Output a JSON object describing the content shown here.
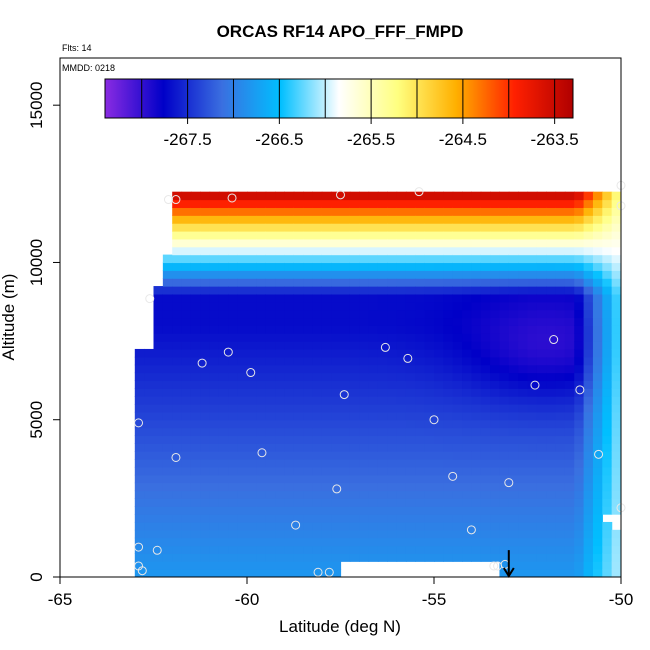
{
  "chart_data": {
    "type": "heatmap",
    "title": "ORCAS RF14 APO_FFF_FMPD",
    "annotations": [
      "Flts: 14",
      "MMDD: 0218"
    ],
    "xlabel": "Latitude (deg N)",
    "ylabel": "Altitude (m)",
    "xlim": [
      -65,
      -50
    ],
    "ylim": [
      0,
      16500
    ],
    "x_ticks": [
      -65,
      -60,
      -55,
      -50
    ],
    "y_ticks": [
      0,
      5000,
      10000,
      15000
    ],
    "colorbar": {
      "range": [
        -268.4,
        -263.3
      ],
      "ticks": [
        -267.5,
        -266.5,
        -265.5,
        -264.5,
        -263.5
      ],
      "colors": [
        "#8a2be2",
        "#0000c8",
        "#3a6fe0",
        "#00bfff",
        "#ffffff",
        "#ffff80",
        "#ffb000",
        "#ff2000",
        "#b00000"
      ]
    },
    "field_summary": {
      "top_layer_altitude_range": [
        10500,
        12300
      ],
      "top_layer_value_range": [
        -264.8,
        -263.3
      ],
      "core_minimum_value": -268.0,
      "core_minimum_location": {
        "lat": -52.0,
        "alt": 7500
      },
      "lower_layer_value": -266.8,
      "data_lat_range": [
        -63.0,
        -50.0
      ]
    },
    "flight_points": [
      {
        "lat": -62.1,
        "alt": 12000
      },
      {
        "lat": -61.9,
        "alt": 12000
      },
      {
        "lat": -60.4,
        "alt": 12050
      },
      {
        "lat": -57.5,
        "alt": 12150
      },
      {
        "lat": -55.4,
        "alt": 12250
      },
      {
        "lat": -50.0,
        "alt": 12450
      },
      {
        "lat": -50.0,
        "alt": 11800
      },
      {
        "lat": -62.6,
        "alt": 8850
      },
      {
        "lat": -60.5,
        "alt": 7150
      },
      {
        "lat": -61.2,
        "alt": 6800
      },
      {
        "lat": -59.9,
        "alt": 6500
      },
      {
        "lat": -56.3,
        "alt": 7300
      },
      {
        "lat": -55.7,
        "alt": 6950
      },
      {
        "lat": -51.8,
        "alt": 7550
      },
      {
        "lat": -52.3,
        "alt": 6100
      },
      {
        "lat": -51.1,
        "alt": 5950
      },
      {
        "lat": -57.4,
        "alt": 5800
      },
      {
        "lat": -55.0,
        "alt": 5000
      },
      {
        "lat": -62.9,
        "alt": 4900
      },
      {
        "lat": -61.9,
        "alt": 3800
      },
      {
        "lat": -59.6,
        "alt": 3950
      },
      {
        "lat": -54.5,
        "alt": 3200
      },
      {
        "lat": -53.0,
        "alt": 3000
      },
      {
        "lat": -50.6,
        "alt": 3900
      },
      {
        "lat": -57.6,
        "alt": 2800
      },
      {
        "lat": -58.7,
        "alt": 1650
      },
      {
        "lat": -54.0,
        "alt": 1500
      },
      {
        "lat": -50.0,
        "alt": 2200
      },
      {
        "lat": -62.9,
        "alt": 950
      },
      {
        "lat": -62.4,
        "alt": 850
      },
      {
        "lat": -62.9,
        "alt": 350
      },
      {
        "lat": -62.8,
        "alt": 200
      },
      {
        "lat": -58.1,
        "alt": 150
      },
      {
        "lat": -57.8,
        "alt": 150
      },
      {
        "lat": -53.4,
        "alt": 350
      },
      {
        "lat": -53.3,
        "alt": 350
      },
      {
        "lat": -53.1,
        "alt": 400
      }
    ],
    "arrow_marker": {
      "lat": -53.0,
      "alt": 600
    }
  }
}
